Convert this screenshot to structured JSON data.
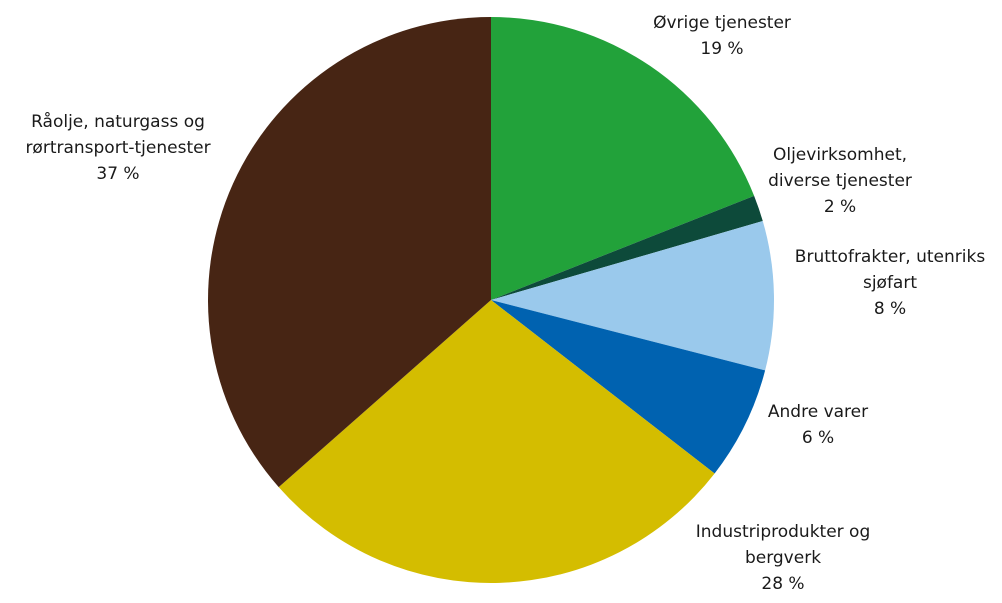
{
  "chart_data": {
    "type": "pie",
    "title": "",
    "start_angle_deg": 0,
    "direction": "clockwise",
    "slices": [
      {
        "label_lines": [
          "Øvrige tjenester"
        ],
        "value_label": "19 %",
        "value": 19,
        "color": "#22a23a"
      },
      {
        "label_lines": [
          "Oljevirksomhet,",
          "diverse tjenester"
        ],
        "value_label": "2 %",
        "value": 1.5,
        "color": "#0d4a3a"
      },
      {
        "label_lines": [
          "Bruttofrakter, utenriks",
          "sjøfart"
        ],
        "value_label": "8 %",
        "value": 8.5,
        "color": "#9ac9ec"
      },
      {
        "label_lines": [
          "Andre varer"
        ],
        "value_label": "6 %",
        "value": 6.5,
        "color": "#0062b0"
      },
      {
        "label_lines": [
          "Industriprodukter og",
          "bergverk"
        ],
        "value_label": "28 %",
        "value": 28,
        "color": "#d4bd00"
      },
      {
        "label_lines": [
          "Råolje, naturgass og",
          "rørtransport-tjenester"
        ],
        "value_label": "37 %",
        "value": 36.5,
        "color": "#472514"
      }
    ]
  }
}
